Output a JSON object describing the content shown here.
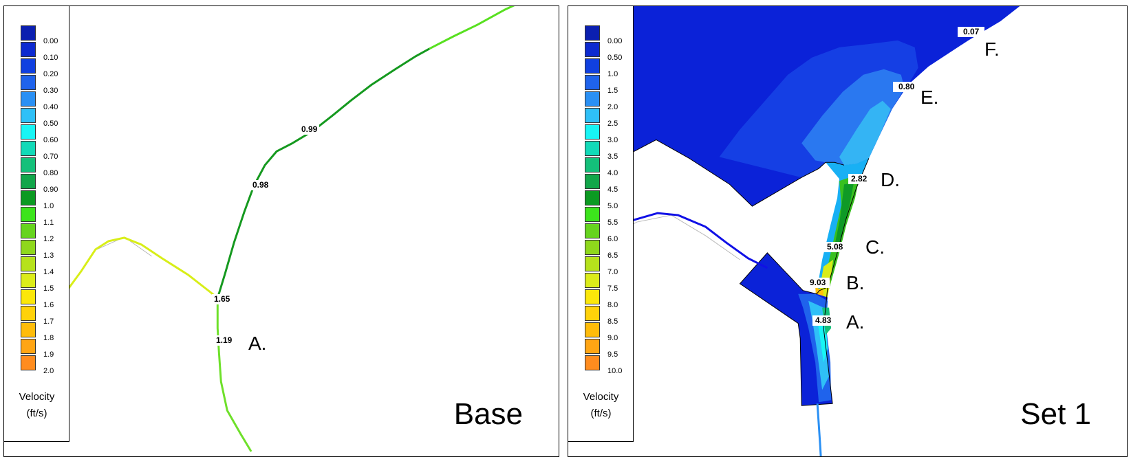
{
  "legend_title_line1": "Velocity",
  "legend_title_line2": "(ft/s)",
  "panels": [
    {
      "title": "Base",
      "legend": {
        "labels": [
          "0.00",
          "0.10",
          "0.20",
          "0.30",
          "0.40",
          "0.50",
          "0.60",
          "0.70",
          "0.80",
          "0.90",
          "1.0",
          "1.1",
          "1.2",
          "1.3",
          "1.4",
          "1.5",
          "1.6",
          "1.7",
          "1.8",
          "1.9",
          "2.0"
        ]
      },
      "values": [
        "0.99",
        "0.98",
        "1.65",
        "1.19"
      ],
      "letters": [
        "A."
      ]
    },
    {
      "title": "Set 1",
      "legend": {
        "labels": [
          "0.00",
          "0.50",
          "1.0",
          "1.5",
          "2.0",
          "2.5",
          "3.0",
          "3.5",
          "4.0",
          "4.5",
          "5.0",
          "5.5",
          "6.0",
          "6.5",
          "7.0",
          "7.5",
          "8.0",
          "8.5",
          "9.0",
          "9.5",
          "10.0"
        ]
      },
      "values": [
        "0.07",
        "0.80",
        "2.82",
        "5.08",
        "9.03",
        "4.83"
      ],
      "letters": [
        "F.",
        "E.",
        "D.",
        "C.",
        "B.",
        "A."
      ]
    }
  ],
  "colors": {
    "scale": [
      "#0b1fb0",
      "#0d2ad0",
      "#1040e0",
      "#1f63ec",
      "#2a90f4",
      "#2fc0f7",
      "#18f5f5",
      "#12dab8",
      "#14c07a",
      "#12a64a",
      "#0c9a22",
      "#3ce41c",
      "#66d41e",
      "#8fd81c",
      "#b6e21c",
      "#dcec1a",
      "#fbe70a",
      "#ffd20a",
      "#ffbc0a",
      "#ffa514",
      "#ff8c1e"
    ],
    "water_deep": "#0b22d8",
    "water_mid": "#1a48e8"
  }
}
